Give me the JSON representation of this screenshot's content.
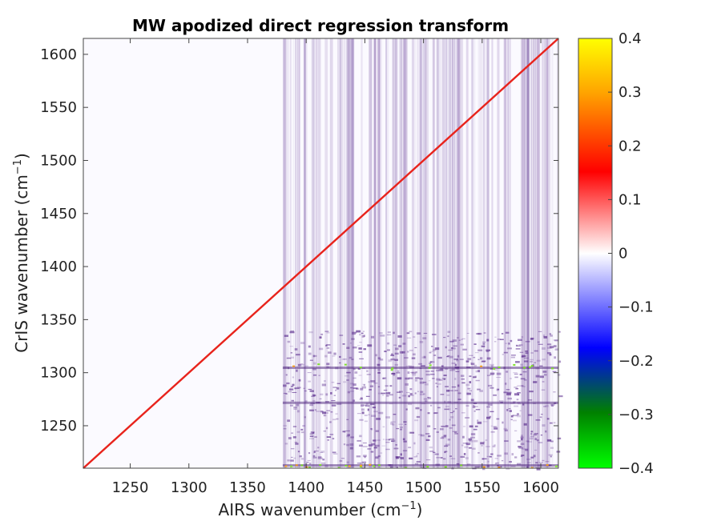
{
  "chart_data": {
    "type": "heatmap",
    "title": "MW apodized direct regression transform",
    "xlabel": {
      "main": "AIRS wavenumber (cm",
      "sup": "−1",
      "close": ")"
    },
    "ylabel": {
      "main": "CrIS wavenumber (cm",
      "sup": "−1",
      "close": ")"
    },
    "xlim": [
      1210,
      1615
    ],
    "ylim": [
      1210,
      1615
    ],
    "xticks": [
      1250,
      1300,
      1350,
      1400,
      1450,
      1500,
      1550,
      1600
    ],
    "yticks": [
      1250,
      1300,
      1350,
      1400,
      1450,
      1500,
      1550,
      1600
    ],
    "colorbar": {
      "clim": [
        -0.4,
        0.4
      ],
      "ticks": [
        0.4,
        0.3,
        0.2,
        0.1,
        0,
        -0.1,
        -0.2,
        -0.3,
        -0.4
      ],
      "tick_labels": [
        "0.4",
        "0.3",
        "0.2",
        "0.1",
        "0",
        "−0.1",
        "−0.2",
        "−0.3",
        "−0.4"
      ],
      "colors_top_to_bottom": [
        "#ffff00",
        "#ffa500",
        "#ff0000",
        "#ffffff",
        "#0000ff",
        "#008000",
        "#00ff00"
      ]
    },
    "diagonal_value": 0.22,
    "diagonal_color": "#e8231c",
    "offdiag_color": "#5b2d8e",
    "bright_band_y": [
      1300,
      1340
    ],
    "noisy_x_start": 1380
  }
}
